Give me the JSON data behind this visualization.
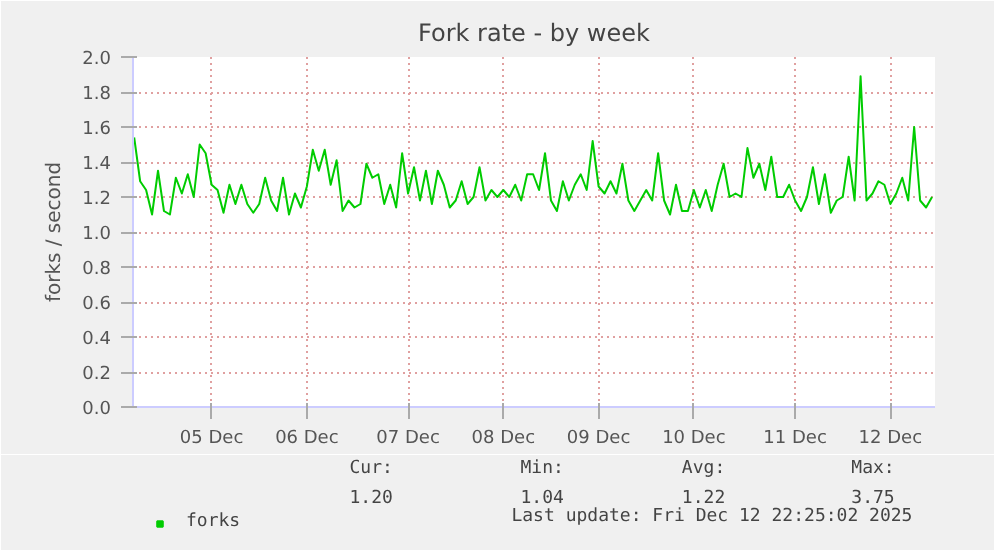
{
  "chart_data": {
    "type": "line",
    "title": "Fork rate - by week",
    "ylabel": "forks / second",
    "categories": [
      null,
      null,
      null,
      null,
      null,
      null,
      null,
      null,
      null,
      null,
      null,
      null,
      null,
      "05 Dec",
      null,
      null,
      null,
      null,
      null,
      null,
      null,
      null,
      null,
      null,
      null,
      null,
      null,
      null,
      null,
      "06 Dec",
      null,
      null,
      null,
      null,
      null,
      null,
      null,
      null,
      null,
      null,
      null,
      null,
      null,
      null,
      null,
      null,
      "07 Dec",
      null,
      null,
      null,
      null,
      null,
      null,
      null,
      null,
      null,
      null,
      null,
      null,
      null,
      null,
      null,
      "08 Dec",
      null,
      null,
      null,
      null,
      null,
      null,
      null,
      null,
      null,
      null,
      null,
      null,
      null,
      null,
      null,
      "09 Dec",
      null,
      null,
      null,
      null,
      null,
      null,
      null,
      null,
      null,
      null,
      null,
      null,
      null,
      null,
      null,
      "10 Dec",
      null,
      null,
      null,
      null,
      null,
      null,
      null,
      null,
      null,
      null,
      null,
      null,
      null,
      null,
      null,
      null,
      "11 Dec",
      null,
      null,
      null,
      null,
      null,
      null,
      null,
      null,
      null,
      null,
      null,
      null,
      null,
      null,
      null,
      "12 Dec",
      null,
      null,
      null,
      null,
      null,
      null,
      null
    ],
    "ylim": [
      0,
      2.0
    ],
    "yticks": [
      {
        "value": 0,
        "label": "0.0"
      },
      {
        "value": 0.2,
        "label": "0.2"
      },
      {
        "value": 0.4,
        "label": "0.4"
      },
      {
        "value": 0.6,
        "label": "0.6"
      },
      {
        "value": 0.8,
        "label": "0.8"
      },
      {
        "value": 1.0,
        "label": "1.0"
      },
      {
        "value": 1.2,
        "label": "1.2"
      },
      {
        "value": 1.4,
        "label": "1.4"
      },
      {
        "value": 1.6,
        "label": "1.6"
      },
      {
        "value": 1.8,
        "label": "1.8"
      },
      {
        "value": 2.0,
        "label": "2.0"
      }
    ],
    "grid": true,
    "legend": "bottom left",
    "line_style": "solid",
    "annotations": [
      "Cur:",
      "Min:",
      "Avg:",
      "Max:",
      "1.20",
      "1.04",
      "1.22",
      "3.75",
      "Last update: Fri Dec 12 22:25:02 2025"
    ],
    "series": [
      {
        "name": "forks",
        "color": "#00cc00",
        "values": [
          1.54,
          1.29,
          1.24,
          1.1,
          1.35,
          1.12,
          1.1,
          1.31,
          1.22,
          1.33,
          1.2,
          1.5,
          1.45,
          1.27,
          1.24,
          1.11,
          1.27,
          1.16,
          1.27,
          1.16,
          1.11,
          1.16,
          1.31,
          1.18,
          1.12,
          1.31,
          1.1,
          1.22,
          1.14,
          1.26,
          1.47,
          1.35,
          1.47,
          1.27,
          1.41,
          1.12,
          1.18,
          1.14,
          1.16,
          1.39,
          1.31,
          1.33,
          1.16,
          1.27,
          1.14,
          1.45,
          1.22,
          1.37,
          1.18,
          1.35,
          1.16,
          1.35,
          1.27,
          1.14,
          1.18,
          1.29,
          1.16,
          1.2,
          1.37,
          1.18,
          1.24,
          1.2,
          1.24,
          1.2,
          1.27,
          1.18,
          1.33,
          1.33,
          1.24,
          1.45,
          1.18,
          1.12,
          1.29,
          1.18,
          1.27,
          1.33,
          1.24,
          1.52,
          1.26,
          1.22,
          1.29,
          1.22,
          1.39,
          1.18,
          1.12,
          1.18,
          1.24,
          1.18,
          1.45,
          1.18,
          1.1,
          1.27,
          1.12,
          1.12,
          1.24,
          1.14,
          1.24,
          1.12,
          1.27,
          1.39,
          1.2,
          1.22,
          1.2,
          1.48,
          1.31,
          1.39,
          1.24,
          1.43,
          1.2,
          1.2,
          1.27,
          1.18,
          1.12,
          1.2,
          1.37,
          1.16,
          1.33,
          1.11,
          1.18,
          1.2,
          1.43,
          1.18,
          1.89,
          1.18,
          1.22,
          1.29,
          1.27,
          1.16,
          1.22,
          1.31,
          1.18,
          1.6,
          1.18,
          1.14,
          1.2
        ]
      }
    ]
  }
}
